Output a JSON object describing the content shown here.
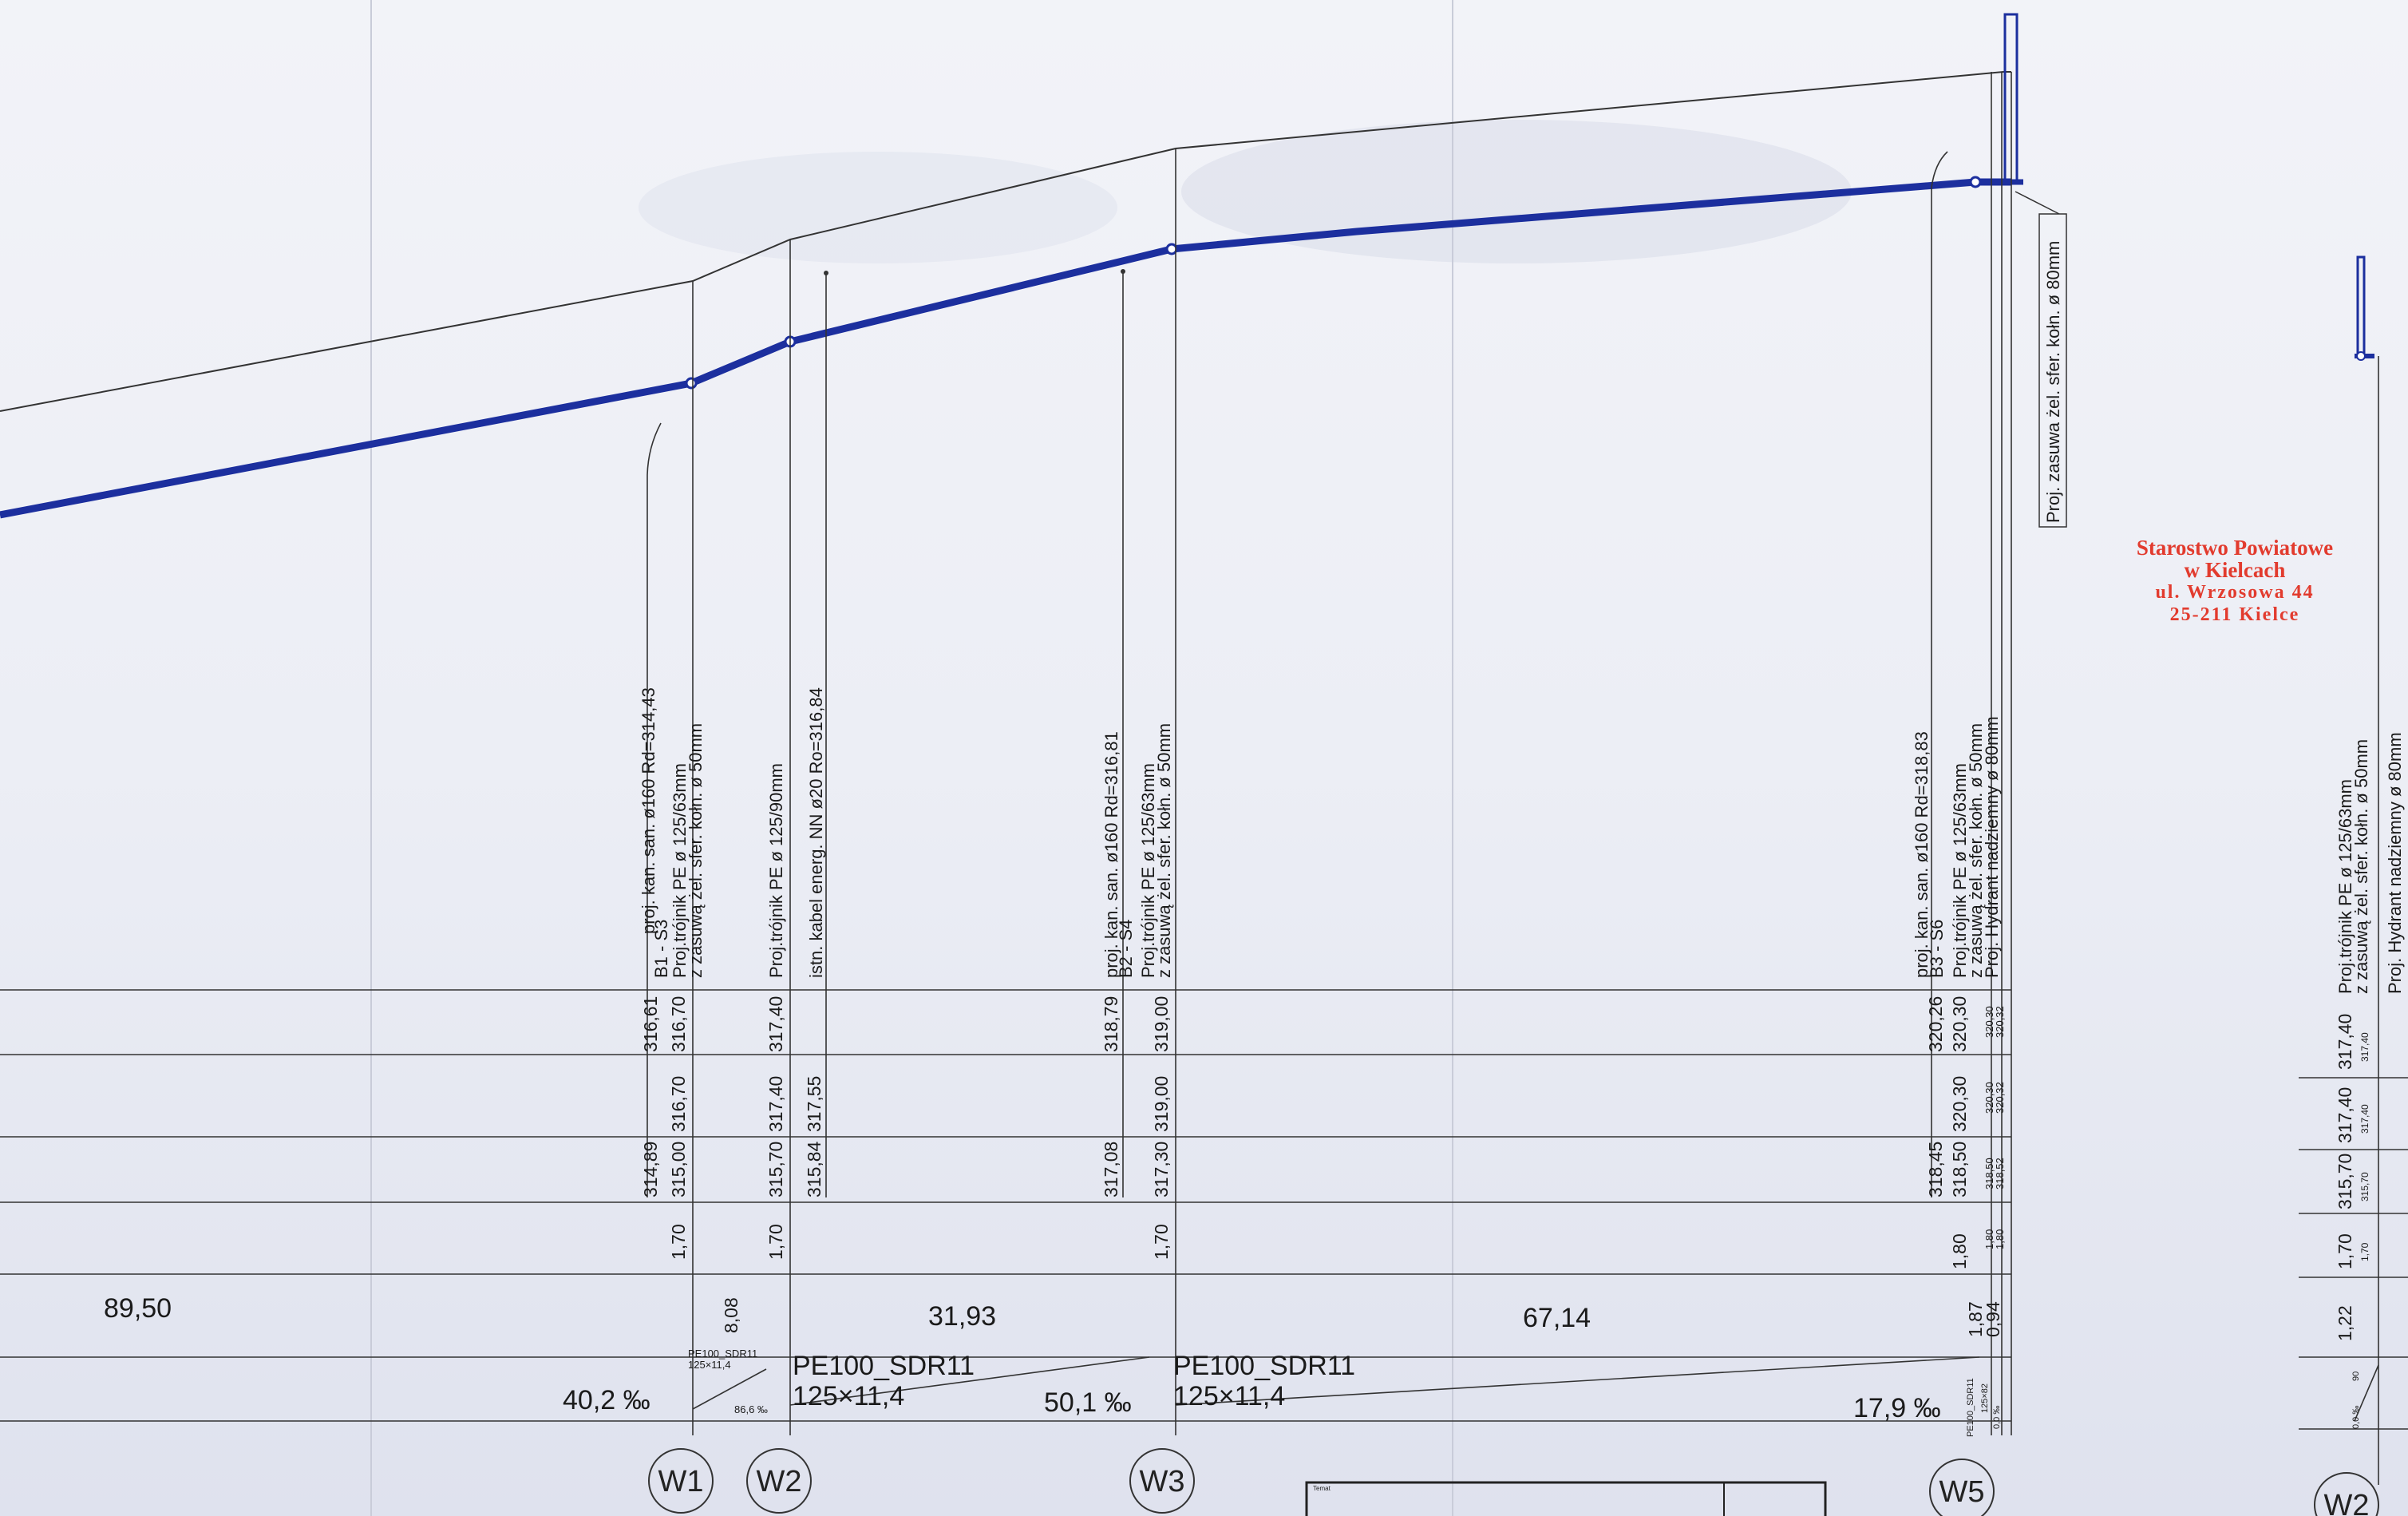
{
  "stamp": {
    "line1": "Starostwo Powiatowe",
    "line2": "w Kielcach",
    "line3": "ul. Wrzosowa 44",
    "line4": "25-211 Kielce"
  },
  "node_labels": {
    "w1": "W1",
    "w2": "W2",
    "w3": "W3",
    "w5": "W5",
    "w2b": "W2"
  },
  "annotations": {
    "w1_san": "proj. kan. san. ø160  Rd=314,43",
    "w1_san_b": "B1 - S3",
    "w1_tee": "Proj.trójnik PE ø 125/63mm",
    "w1_tee_b": "z zasuwą żel. sfer. kołn. ø 50mm",
    "w2_tee": "Proj.trójnik PE ø 125/90mm",
    "w2_cable": "istn. kabel energ. NN  ø20  Ro=316,84",
    "w3_san": "proj. kan. san. ø160  Rd=316,81",
    "w3_san_b": "B2 - S4",
    "w3_tee": "Proj.trójnik PE ø 125/63mm",
    "w3_tee_b": "z zasuwą żel. sfer. kołn. ø 50mm",
    "w5_san": "proj. kan. san. ø160  Rd=318,83",
    "w5_san_b": "B3 - S6",
    "w5_tee": "Proj.trójnik PE ø 125/63mm",
    "w5_tee_b": "z zasuwą żel. sfer. kołn. ø 50mm",
    "w5_hyd": "Proj. Hydrant nadziemny ø 80mm",
    "w5_valve": "Proj. zasuwa żel. sfer. kołn. ø 80mm",
    "w2b_tee": "Proj.trójnik PE ø 125/63mm",
    "w2b_tee_b": "z zasuwą żel. sfer. kołn. ø 50mm",
    "w2b_hyd": "Proj. Hydrant nadziemny ø 80mm"
  },
  "table_values": {
    "r1_316_61": "316,61",
    "r1_316_70": "316,70",
    "r1_317_40": "317,40",
    "r1_318_79": "318,79",
    "r1_319_00": "319,00",
    "r1_320_26": "320,26",
    "r1_320_30": "320,30",
    "r1_320_30s": "320,30",
    "r1_320_32s": "320,32",
    "r2_316_70": "316,70",
    "r2_317_40": "317,40",
    "r2_317_55": "317,55",
    "r2_319_00": "319,00",
    "r2_320_30": "320,30",
    "r2_320_30s": "320,30",
    "r2_320_32s": "320,32",
    "r3_314_89": "314,89",
    "r3_315_00": "315,00",
    "r3_315_70": "315,70",
    "r3_315_84": "315,84",
    "r3_317_08": "317,08",
    "r3_317_30": "317,30",
    "r3_318_45": "318,45",
    "r3_318_50": "318,50",
    "r3_318_50s": "318,50",
    "r3_318_52s": "318,52",
    "r4_1_70a": "1,70",
    "r4_1_70b": "1,70",
    "r4_1_70c": "1,70",
    "r4_1_80": "1,80",
    "r4_1_80s": "1,80",
    "r4_1_80s2": "1,80",
    "dist_89_50": "89,50",
    "dist_8_08": "8,08",
    "dist_31_93": "31,93",
    "dist_67_14": "67,14",
    "dist_1_87": "1,87",
    "dist_0_94": "0,94",
    "pipe_small_a": "PE100_SDR11",
    "pipe_small_b": "125×11,4",
    "pipe_small_slope": "86,6 ‰",
    "pipe1_a": "PE100_SDR11",
    "pipe1_b": "125×11,4",
    "pipe2_a": "PE100_SDR11",
    "pipe2_b": "125×11,4",
    "slope_1": "40,2 ‰",
    "slope_2": "50,1 ‰",
    "slope_3": "17,9 ‰",
    "w5_pipe_small": "PE100_SDR11",
    "w5_small_a": "0,0 ‰",
    "w5_small_b": "125×82",
    "right_317_40a": "317,40",
    "right_317_40s": "317,40",
    "right_317_40b": "317,40",
    "right_317_40s2": "317,40",
    "right_315_70": "315,70",
    "right_315_70s": "315,70",
    "right_1_70": "1,70",
    "right_1_70s": "1,70",
    "right_1_22": "1,22",
    "right_0_0": "0,0 ‰",
    "right_pe": "90"
  },
  "title_block": {
    "label": "Temat"
  },
  "colors": {
    "pipe": "#1c2f9e",
    "line": "#222222",
    "stamp": "#e23b2e",
    "background": "#eef0f6"
  }
}
